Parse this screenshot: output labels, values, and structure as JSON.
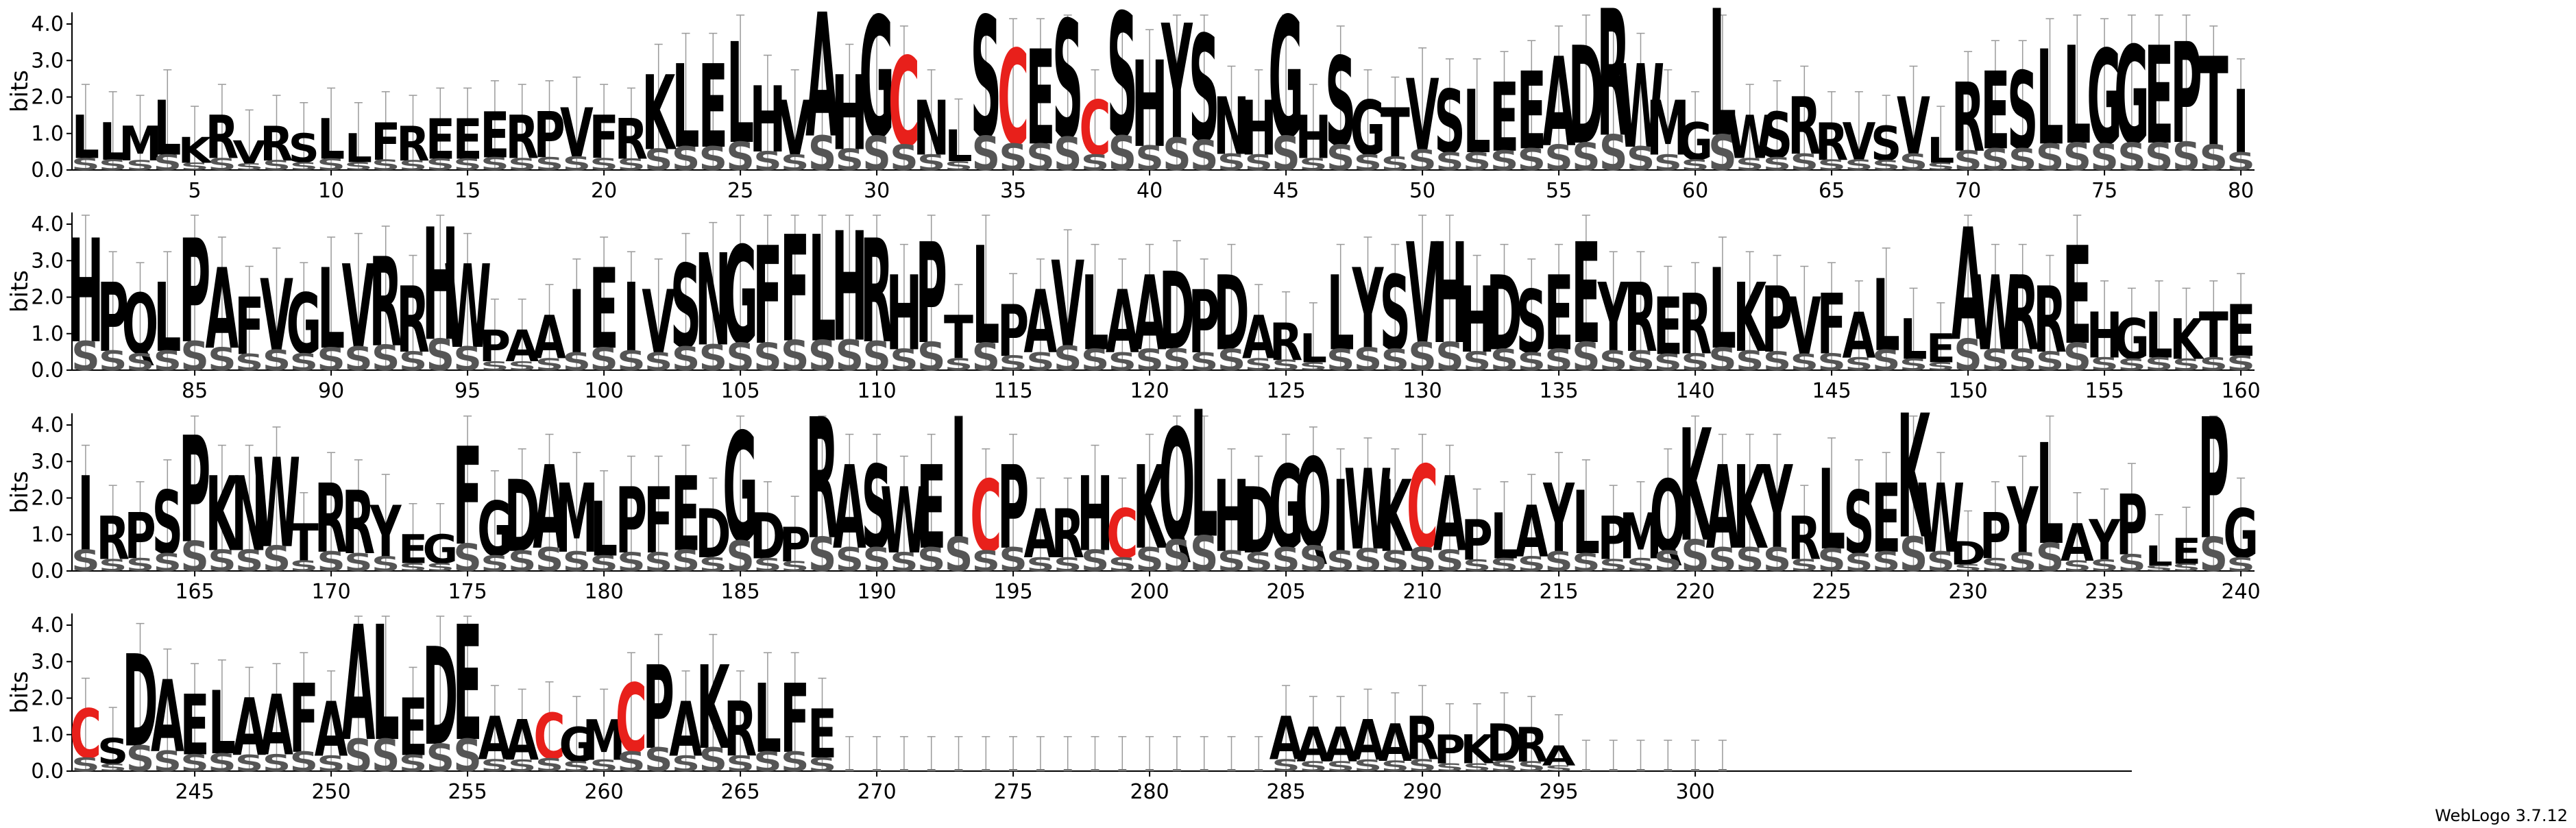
{
  "chart_data": {
    "type": "sequence-logo",
    "ylabel": "bits",
    "ylim": [
      0,
      4.32
    ],
    "yticks": [
      "0.0",
      "1.0",
      "2.0",
      "3.0",
      "4.0"
    ],
    "positions_per_row": 80,
    "total_positions": 301,
    "x_tick_labels_every": 5,
    "colors": {
      "default": "#000000",
      "highlight": "#e8201b",
      "errorbar": "#9a9a9a"
    },
    "highlight_letters": [
      "C"
    ],
    "consensus": "LLMLKRVRSLLFREEERPVFRKLELHVAHGCNLSCESCSHYSNHGHSGTVSLEEADRWMGLWSRRVSVLRESLLGGEPTIHPQLPAFVGLVRRHWPAAIEIVSNGFFLHRHPTLPAVLAADPDARLLYSVHHDSEEYRERLKPVFALLEAWRREHGLKTEIRPSPKNWTRRYEGFGDAMLPFEDGDPRASWEICPARHCKQLHDGQIWKCAPLAYLPMQKAKYRLSEKWDPYLAYPLEPGCSDAELAAFAALEDEAACGMCPAKRLFELPNPLRAAAAAAAAAAAAAAARPKDRAAPAAA",
    "heights": [
      1.5,
      1.3,
      1.2,
      1.9,
      0.9,
      1.5,
      0.8,
      1.2,
      1.0,
      1.4,
      1.0,
      1.3,
      1.2,
      1.4,
      1.4,
      1.6,
      1.5,
      1.6,
      1.7,
      1.5,
      1.4,
      2.6,
      2.9,
      2.9,
      3.5,
      2.3,
      1.9,
      4.3,
      2.6,
      4.2,
      3.1,
      1.9,
      1.1,
      4.2,
      3.3,
      3.3,
      4.1,
      1.9,
      4.3,
      3.0,
      4.0,
      3.7,
      2.0,
      1.9,
      4.2,
      1.5,
      3.1,
      1.9,
      1.7,
      2.5,
      2.2,
      2.2,
      2.4,
      2.7,
      3.1,
      3.4,
      4.4,
      2.9,
      1.9,
      1.3,
      4.4,
      1.5,
      1.6,
      2.0,
      1.3,
      1.3,
      1.2,
      2.0,
      0.9,
      2.4,
      2.7,
      2.7,
      3.3,
      3.4,
      3.3,
      3.4,
      3.4,
      3.5,
      3.1,
      2.2,
      3.6,
      2.4,
      2.1,
      2.4,
      3.6,
      2.8,
      2.0,
      2.5,
      2.1,
      2.8,
      2.9,
      3.1,
      2.3,
      3.9,
      2.9,
      1.1,
      1.1,
      1.5,
      2.2,
      2.8,
      2.4,
      2.2,
      2.9,
      3.2,
      3.4,
      3.4,
      3.7,
      3.7,
      3.8,
      3.6,
      2.6,
      3.5,
      1.5,
      3.4,
      1.8,
      2.2,
      3.0,
      2.6,
      2.2,
      2.6,
      2.7,
      2.2,
      2.6,
      1.5,
      1.3,
      1.0,
      2.6,
      2.8,
      2.6,
      3.5,
      3.5,
      2.3,
      2.6,
      2.2,
      2.6,
      3.5,
      2.4,
      2.4,
      2.0,
      2.1,
      2.8,
      2.4,
      2.3,
      2.0,
      2.1,
      1.6,
      2.5,
      1.4,
      1.0,
      3.9,
      2.6,
      2.6,
      2.3,
      3.4,
      1.6,
      1.4,
      1.6,
      1.4,
      1.6,
      1.8,
      2.6,
      1.5,
      1.6,
      2.2,
      3.7,
      2.6,
      2.6,
      3.1,
      1.3,
      2.4,
      2.2,
      1.8,
      1.0,
      1.0,
      3.4,
      1.9,
      2.5,
      2.9,
      2.4,
      1.9,
      2.3,
      2.3,
      2.6,
      1.7,
      3.8,
      1.6,
      1.2,
      4.2,
      2.9,
      2.9,
      2.3,
      2.9,
      4.2,
      2.5,
      2.9,
      1.7,
      1.7,
      2.6,
      1.7,
      2.9,
      3.9,
      4.4,
      2.5,
      2.3,
      2.9,
      3.1,
      2.5,
      2.8,
      2.5,
      2.9,
      2.6,
      1.4,
      1.6,
      1.8,
      2.4,
      2.2,
      1.5,
      1.6,
      2.5,
      3.9,
      2.9,
      2.9,
      2.9,
      1.5,
      2.8,
      2.2,
      2.4,
      4.3,
      2.4,
      0.8,
      1.6,
      2.3,
      3.5,
      1.3,
      1.4,
      2.1,
      0.7,
      0.9,
      4.2,
      1.7,
      1.7,
      0.9,
      3.2,
      2.5,
      2.1,
      2.2,
      2.0,
      2.1,
      2.4,
      1.9,
      4.0,
      4.0,
      2.0,
      3.4,
      4.0,
      1.5,
      1.4,
      1.6,
      1.2,
      1.4,
      2.4,
      2.9,
      1.9,
      2.9,
      1.9,
      2.4,
      2.4,
      1.7,
      0.1,
      0.1,
      0.1,
      0.1,
      0.1,
      0.1,
      0.1,
      0.1,
      0.1,
      0.1,
      0.1,
      0.1,
      0.1,
      0.1,
      0.1,
      0.1,
      1.5,
      1.2,
      1.2,
      1.4,
      1.3,
      1.5,
      1.0,
      1.0,
      1.3,
      1.2,
      0.7
    ],
    "footer": "WebLogo 3.7.12"
  }
}
